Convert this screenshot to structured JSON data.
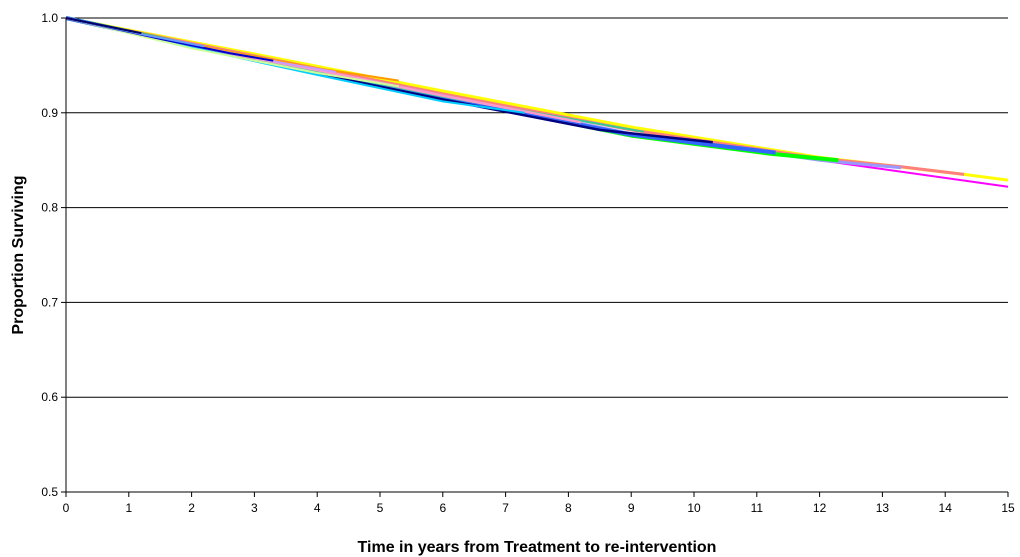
{
  "chart_data": {
    "type": "line",
    "title": "",
    "xlabel": "Time in years from Treatment to re-intervention",
    "ylabel": "Proportion Surviving",
    "xlim": [
      0,
      15
    ],
    "ylim": [
      0.5,
      1.0
    ],
    "x_ticks": [
      "0",
      "1",
      "2",
      "3",
      "4",
      "5",
      "6",
      "7",
      "8",
      "9",
      "10",
      "11",
      "12",
      "13",
      "14",
      "15"
    ],
    "y_ticks": [
      "0.5",
      "0.6",
      "0.7",
      "0.8",
      "0.9",
      "1.0"
    ],
    "grid": "horizontal",
    "legend": "none",
    "series": [
      {
        "color": "#FF00FF",
        "width": 2,
        "points": [
          [
            0,
            1.0
          ],
          [
            3,
            0.96
          ],
          [
            6,
            0.918
          ],
          [
            9,
            0.878
          ],
          [
            12,
            0.85
          ],
          [
            15,
            0.822
          ]
        ]
      },
      {
        "color": "#FFFF00",
        "width": 3,
        "points": [
          [
            0,
            1.0
          ],
          [
            3,
            0.962
          ],
          [
            6,
            0.923
          ],
          [
            9,
            0.885
          ],
          [
            12,
            0.853
          ],
          [
            14.3,
            0.835
          ],
          [
            15,
            0.829
          ]
        ]
      },
      {
        "color": "#FF7F7F",
        "width": 3,
        "points": [
          [
            0,
            1.0
          ],
          [
            3,
            0.96
          ],
          [
            6,
            0.92
          ],
          [
            9,
            0.882
          ],
          [
            12,
            0.852
          ],
          [
            13.3,
            0.843
          ],
          [
            14.3,
            0.835
          ]
        ]
      },
      {
        "color": "#9999FF",
        "width": 3,
        "points": [
          [
            0,
            1.0
          ],
          [
            3,
            0.958
          ],
          [
            6,
            0.918
          ],
          [
            9,
            0.878
          ],
          [
            12,
            0.85
          ],
          [
            13.3,
            0.842
          ]
        ]
      },
      {
        "color": "#00FF00",
        "width": 4,
        "points": [
          [
            0,
            1.0
          ],
          [
            3,
            0.957
          ],
          [
            6,
            0.916
          ],
          [
            9,
            0.876
          ],
          [
            11.2,
            0.857
          ],
          [
            12.3,
            0.85
          ]
        ]
      },
      {
        "color": "#3366FF",
        "width": 4,
        "points": [
          [
            0,
            1.0
          ],
          [
            3,
            0.956
          ],
          [
            6,
            0.915
          ],
          [
            9,
            0.877
          ],
          [
            10.3,
            0.866
          ],
          [
            11.3,
            0.858
          ]
        ]
      },
      {
        "color": "#000080",
        "width": 2.5,
        "points": [
          [
            0,
            1.0
          ],
          [
            3,
            0.955
          ],
          [
            6,
            0.914
          ],
          [
            8.5,
            0.882
          ],
          [
            10.3,
            0.869
          ]
        ]
      },
      {
        "color": "#33CC99",
        "width": 2,
        "points": [
          [
            0,
            1.0
          ],
          [
            3,
            0.957
          ],
          [
            6,
            0.917
          ],
          [
            8,
            0.894
          ],
          [
            9.2,
            0.88
          ]
        ]
      },
      {
        "color": "#FF99CC",
        "width": 2.5,
        "points": [
          [
            0,
            1.0
          ],
          [
            2,
            0.97
          ],
          [
            4,
            0.945
          ],
          [
            6,
            0.918
          ],
          [
            8.2,
            0.89
          ]
        ]
      },
      {
        "color": "#00CCFF",
        "width": 2,
        "points": [
          [
            0,
            1.0
          ],
          [
            2,
            0.969
          ],
          [
            4,
            0.94
          ],
          [
            6,
            0.912
          ],
          [
            7.3,
            0.9
          ]
        ]
      },
      {
        "color": "#CCFF99",
        "width": 2,
        "points": [
          [
            0,
            1.0
          ],
          [
            2,
            0.968
          ],
          [
            4,
            0.942
          ],
          [
            5.3,
            0.928
          ]
        ]
      },
      {
        "color": "#FF9900",
        "width": 2,
        "points": [
          [
            0,
            1.0
          ],
          [
            2,
            0.972
          ],
          [
            4,
            0.947
          ],
          [
            5.3,
            0.934
          ]
        ]
      },
      {
        "color": "#CC99FF",
        "width": 2,
        "points": [
          [
            0,
            1.0
          ],
          [
            2,
            0.971
          ],
          [
            3.5,
            0.952
          ],
          [
            4.3,
            0.943
          ]
        ]
      },
      {
        "color": "#0000CC",
        "width": 2,
        "points": [
          [
            0,
            1.0
          ],
          [
            1.5,
            0.978
          ],
          [
            2.6,
            0.963
          ],
          [
            3.3,
            0.955
          ]
        ]
      },
      {
        "color": "#6699FF",
        "width": 2,
        "points": [
          [
            0,
            1.0
          ],
          [
            1.2,
            0.983
          ],
          [
            2.2,
            0.97
          ]
        ]
      },
      {
        "color": "#000066",
        "width": 2,
        "points": [
          [
            0,
            1.0
          ],
          [
            0.6,
            0.992
          ],
          [
            1.2,
            0.984
          ]
        ]
      }
    ]
  }
}
